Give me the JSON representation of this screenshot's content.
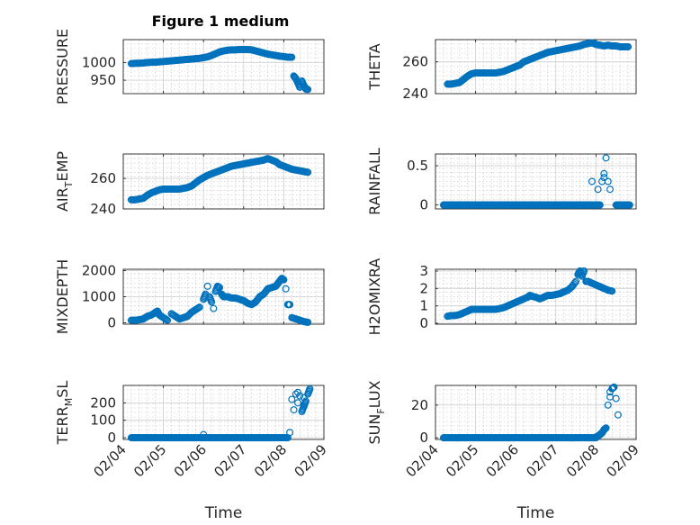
{
  "figure": {
    "title": "Figure 1 medium",
    "marker_color": "#0072BD"
  },
  "x_tick_labels": [
    "02/04",
    "02/05",
    "02/06",
    "02/07",
    "02/08",
    "02/09"
  ],
  "chart_data": [
    {
      "type": "scatter",
      "name": "pressure",
      "title": "Figure 1 medium",
      "ylabel": "PRESSURE",
      "xlabel": "",
      "x_range": [
        0,
        5
      ],
      "ylim": [
        912,
        1065
      ],
      "yticks": [
        950,
        1000
      ],
      "ytick_labels": [
        "950",
        "1000"
      ],
      "x_tick_labels_shown": false,
      "points": [
        [
          0.2,
          997
        ],
        [
          0.3,
          998
        ],
        [
          0.4,
          998
        ],
        [
          0.5,
          999
        ],
        [
          0.6,
          1000
        ],
        [
          0.7,
          1001
        ],
        [
          0.8,
          1001
        ],
        [
          0.9,
          1002
        ],
        [
          1.0,
          1003
        ],
        [
          1.1,
          1004
        ],
        [
          1.2,
          1005
        ],
        [
          1.3,
          1006
        ],
        [
          1.4,
          1007
        ],
        [
          1.5,
          1008
        ],
        [
          1.6,
          1009
        ],
        [
          1.7,
          1010
        ],
        [
          1.8,
          1011
        ],
        [
          1.9,
          1012
        ],
        [
          2.0,
          1014
        ],
        [
          2.1,
          1016
        ],
        [
          2.2,
          1020
        ],
        [
          2.3,
          1025
        ],
        [
          2.4,
          1030
        ],
        [
          2.5,
          1033
        ],
        [
          2.6,
          1035
        ],
        [
          2.7,
          1036
        ],
        [
          2.8,
          1036
        ],
        [
          2.9,
          1037
        ],
        [
          3.0,
          1037
        ],
        [
          3.1,
          1037
        ],
        [
          3.2,
          1036
        ],
        [
          3.3,
          1033
        ],
        [
          3.4,
          1030
        ],
        [
          3.5,
          1027
        ],
        [
          3.6,
          1024
        ],
        [
          3.7,
          1022
        ],
        [
          3.8,
          1020
        ],
        [
          3.9,
          1018
        ],
        [
          4.0,
          1017
        ],
        [
          4.1,
          1015
        ],
        [
          4.2,
          1015
        ],
        [
          4.25,
          962
        ],
        [
          4.3,
          955
        ],
        [
          4.35,
          943
        ],
        [
          4.4,
          930
        ],
        [
          4.45,
          948
        ],
        [
          4.5,
          935
        ],
        [
          4.55,
          925
        ],
        [
          4.6,
          924
        ]
      ]
    },
    {
      "type": "scatter",
      "name": "theta",
      "ylabel": "THETA",
      "xlabel": "",
      "x_range": [
        0,
        5
      ],
      "ylim": [
        240,
        274
      ],
      "yticks": [
        240,
        260
      ],
      "ytick_labels": [
        "240",
        "260"
      ],
      "x_tick_labels_shown": false,
      "points": [
        [
          0.3,
          246
        ],
        [
          0.4,
          246
        ],
        [
          0.5,
          246.5
        ],
        [
          0.6,
          247
        ],
        [
          0.7,
          249
        ],
        [
          0.8,
          251
        ],
        [
          0.9,
          252.5
        ],
        [
          1.0,
          253
        ],
        [
          1.1,
          253
        ],
        [
          1.2,
          253
        ],
        [
          1.3,
          253
        ],
        [
          1.4,
          253
        ],
        [
          1.5,
          253
        ],
        [
          1.6,
          253.5
        ],
        [
          1.7,
          254
        ],
        [
          1.8,
          255
        ],
        [
          1.9,
          256
        ],
        [
          2.0,
          257
        ],
        [
          2.1,
          258
        ],
        [
          2.2,
          260
        ],
        [
          2.3,
          261
        ],
        [
          2.4,
          262
        ],
        [
          2.5,
          263
        ],
        [
          2.6,
          264
        ],
        [
          2.7,
          265
        ],
        [
          2.8,
          266
        ],
        [
          2.9,
          266.5
        ],
        [
          3.0,
          267
        ],
        [
          3.1,
          267.5
        ],
        [
          3.2,
          268
        ],
        [
          3.3,
          268.5
        ],
        [
          3.4,
          269
        ],
        [
          3.5,
          269.5
        ],
        [
          3.6,
          270
        ],
        [
          3.7,
          271
        ],
        [
          3.8,
          271.5
        ],
        [
          3.9,
          272
        ],
        [
          4.0,
          271
        ],
        [
          4.1,
          270.5
        ],
        [
          4.2,
          270
        ],
        [
          4.3,
          270.5
        ],
        [
          4.4,
          270
        ],
        [
          4.5,
          270
        ],
        [
          4.6,
          269.5
        ],
        [
          4.7,
          269.5
        ],
        [
          4.8,
          269.5
        ]
      ]
    },
    {
      "type": "scatter",
      "name": "air-temp",
      "ylabel": "AIR_TEMP",
      "ylabel_main": "AIR",
      "ylabel_sub": "T",
      "ylabel_rest": "EMP",
      "xlabel": "",
      "x_range": [
        0,
        5
      ],
      "ylim": [
        240,
        276
      ],
      "yticks": [
        240,
        260
      ],
      "ytick_labels": [
        "240",
        "260"
      ],
      "x_tick_labels_shown": false,
      "points": [
        [
          0.2,
          246
        ],
        [
          0.3,
          246
        ],
        [
          0.4,
          246.5
        ],
        [
          0.5,
          247
        ],
        [
          0.6,
          249
        ],
        [
          0.7,
          250.5
        ],
        [
          0.8,
          251.5
        ],
        [
          0.9,
          252.5
        ],
        [
          1.0,
          253
        ],
        [
          1.1,
          253
        ],
        [
          1.2,
          253
        ],
        [
          1.3,
          253
        ],
        [
          1.4,
          253
        ],
        [
          1.5,
          253.5
        ],
        [
          1.6,
          254
        ],
        [
          1.7,
          255
        ],
        [
          1.8,
          257
        ],
        [
          1.9,
          259
        ],
        [
          2.0,
          260.5
        ],
        [
          2.1,
          262
        ],
        [
          2.2,
          263
        ],
        [
          2.3,
          264
        ],
        [
          2.4,
          265
        ],
        [
          2.5,
          266
        ],
        [
          2.6,
          267
        ],
        [
          2.7,
          268
        ],
        [
          2.8,
          268.5
        ],
        [
          2.9,
          269
        ],
        [
          3.0,
          269.5
        ],
        [
          3.1,
          270
        ],
        [
          3.2,
          270.5
        ],
        [
          3.3,
          271
        ],
        [
          3.4,
          271.5
        ],
        [
          3.5,
          272
        ],
        [
          3.6,
          273
        ],
        [
          3.7,
          272
        ],
        [
          3.8,
          271
        ],
        [
          3.9,
          269
        ],
        [
          4.0,
          268
        ],
        [
          4.1,
          267
        ],
        [
          4.2,
          266
        ],
        [
          4.3,
          265.5
        ],
        [
          4.4,
          265
        ],
        [
          4.5,
          264.5
        ],
        [
          4.6,
          264
        ]
      ]
    },
    {
      "type": "scatter",
      "name": "rainfall",
      "ylabel": "RAINFALL",
      "xlabel": "",
      "x_range": [
        0,
        5
      ],
      "ylim": [
        -0.05,
        0.65
      ],
      "yticks": [
        0,
        0.5
      ],
      "ytick_labels": [
        "0",
        "0.5"
      ],
      "x_tick_labels_shown": false,
      "baseline_runs": [
        [
          0.2,
          4.1,
          0
        ],
        [
          4.5,
          4.85,
          0
        ]
      ],
      "points": [
        [
          3.9,
          0.3
        ],
        [
          4.05,
          0.2
        ],
        [
          4.15,
          0.3
        ],
        [
          4.2,
          0.4
        ],
        [
          4.25,
          0.6
        ],
        [
          4.3,
          0.3
        ],
        [
          4.35,
          0.2
        ],
        [
          4.2,
          0.35
        ]
      ]
    },
    {
      "type": "scatter",
      "name": "mixdepth",
      "ylabel": "MIXDEPTH",
      "xlabel": "",
      "x_range": [
        0,
        5
      ],
      "ylim": [
        -50,
        2050
      ],
      "yticks": [
        0,
        1000,
        2000
      ],
      "ytick_labels": [
        "0",
        "1000",
        "2000"
      ],
      "x_tick_labels_shown": false,
      "points": [
        [
          0.2,
          100
        ],
        [
          0.3,
          100
        ],
        [
          0.4,
          120
        ],
        [
          0.5,
          150
        ],
        [
          0.6,
          250
        ],
        [
          0.7,
          300
        ],
        [
          0.8,
          400
        ],
        [
          0.85,
          450
        ],
        [
          0.9,
          300
        ],
        [
          1.0,
          200
        ],
        [
          1.1,
          100
        ],
        [
          1.2,
          350
        ],
        [
          1.3,
          250
        ],
        [
          1.4,
          150
        ],
        [
          1.5,
          200
        ],
        [
          1.6,
          250
        ],
        [
          1.7,
          400
        ],
        [
          1.8,
          500
        ],
        [
          1.9,
          600
        ],
        [
          2.0,
          900
        ],
        [
          2.05,
          1100
        ],
        [
          2.1,
          1400
        ],
        [
          2.15,
          1000
        ],
        [
          2.2,
          800
        ],
        [
          2.25,
          550
        ],
        [
          2.3,
          1200
        ],
        [
          2.35,
          1400
        ],
        [
          2.4,
          1350
        ],
        [
          2.45,
          1100
        ],
        [
          2.5,
          1000
        ],
        [
          2.6,
          1000
        ],
        [
          2.7,
          950
        ],
        [
          2.8,
          950
        ],
        [
          2.9,
          900
        ],
        [
          3.0,
          850
        ],
        [
          3.1,
          750
        ],
        [
          3.2,
          700
        ],
        [
          3.3,
          800
        ],
        [
          3.4,
          1000
        ],
        [
          3.5,
          1100
        ],
        [
          3.6,
          1300
        ],
        [
          3.7,
          1350
        ],
        [
          3.8,
          1400
        ],
        [
          3.85,
          1500
        ],
        [
          3.9,
          1600
        ],
        [
          3.95,
          1700
        ],
        [
          4.0,
          1650
        ],
        [
          4.05,
          1300
        ],
        [
          4.1,
          700
        ],
        [
          4.15,
          700
        ],
        [
          4.2,
          200
        ],
        [
          4.3,
          150
        ],
        [
          4.4,
          100
        ],
        [
          4.5,
          50
        ],
        [
          4.6,
          20
        ]
      ]
    },
    {
      "type": "scatter",
      "name": "h2omixra",
      "ylabel": "H2OMIXRA",
      "xlabel": "",
      "x_range": [
        0,
        5
      ],
      "ylim": [
        -0.05,
        3.1
      ],
      "yticks": [
        0,
        1,
        2,
        3
      ],
      "ytick_labels": [
        "0",
        "1",
        "2",
        "3"
      ],
      "x_tick_labels_shown": false,
      "points": [
        [
          0.3,
          0.4
        ],
        [
          0.4,
          0.45
        ],
        [
          0.5,
          0.45
        ],
        [
          0.6,
          0.5
        ],
        [
          0.7,
          0.6
        ],
        [
          0.8,
          0.7
        ],
        [
          0.9,
          0.8
        ],
        [
          1.0,
          0.8
        ],
        [
          1.1,
          0.8
        ],
        [
          1.2,
          0.8
        ],
        [
          1.3,
          0.8
        ],
        [
          1.4,
          0.8
        ],
        [
          1.5,
          0.8
        ],
        [
          1.6,
          0.85
        ],
        [
          1.7,
          0.9
        ],
        [
          1.8,
          1.0
        ],
        [
          1.9,
          1.1
        ],
        [
          2.0,
          1.2
        ],
        [
          2.1,
          1.3
        ],
        [
          2.2,
          1.4
        ],
        [
          2.3,
          1.5
        ],
        [
          2.35,
          1.6
        ],
        [
          2.4,
          1.55
        ],
        [
          2.5,
          1.5
        ],
        [
          2.6,
          1.4
        ],
        [
          2.7,
          1.5
        ],
        [
          2.8,
          1.6
        ],
        [
          2.9,
          1.6
        ],
        [
          3.0,
          1.65
        ],
        [
          3.1,
          1.7
        ],
        [
          3.2,
          1.8
        ],
        [
          3.3,
          1.9
        ],
        [
          3.4,
          2.1
        ],
        [
          3.5,
          2.4
        ],
        [
          3.55,
          2.8
        ],
        [
          3.6,
          3.0
        ],
        [
          3.65,
          2.7
        ],
        [
          3.7,
          3.0
        ],
        [
          3.75,
          2.4
        ],
        [
          3.8,
          2.4
        ],
        [
          3.9,
          2.3
        ],
        [
          4.0,
          2.2
        ],
        [
          4.1,
          2.1
        ],
        [
          4.2,
          2.0
        ],
        [
          4.3,
          1.9
        ],
        [
          4.4,
          1.85
        ]
      ]
    },
    {
      "type": "scatter",
      "name": "terr-msl",
      "ylabel": "TERR_MSL",
      "ylabel_main": "TERR",
      "ylabel_sub": "M",
      "ylabel_rest": "SL",
      "xlabel": "Time",
      "x_range": [
        0,
        5
      ],
      "ylim": [
        -10,
        300
      ],
      "yticks": [
        0,
        100,
        200
      ],
      "ytick_labels": [
        "0",
        "100",
        "200"
      ],
      "x_tick_labels_shown": true,
      "baseline_runs": [
        [
          0.2,
          4.1,
          0
        ]
      ],
      "points": [
        [
          2.0,
          18
        ],
        [
          4.15,
          30
        ],
        [
          4.2,
          220
        ],
        [
          4.25,
          160
        ],
        [
          4.3,
          250
        ],
        [
          4.35,
          200
        ],
        [
          4.4,
          240
        ],
        [
          4.45,
          150
        ],
        [
          4.5,
          180
        ],
        [
          4.55,
          210
        ],
        [
          4.6,
          250
        ],
        [
          4.65,
          280
        ],
        [
          4.35,
          260
        ],
        [
          4.5,
          230
        ]
      ]
    },
    {
      "type": "scatter",
      "name": "sun-flux",
      "ylabel": "SUN_FLUX",
      "ylabel_main": "SUN",
      "ylabel_sub": "F",
      "ylabel_rest": "LUX",
      "xlabel": "Time",
      "x_range": [
        0,
        5
      ],
      "ylim": [
        -1,
        32
      ],
      "yticks": [
        0,
        20
      ],
      "ytick_labels": [
        "0",
        "20"
      ],
      "x_tick_labels_shown": true,
      "baseline_runs": [
        [
          0.2,
          4.0,
          0
        ]
      ],
      "points": [
        [
          4.0,
          0.5
        ],
        [
          4.05,
          1
        ],
        [
          4.1,
          2
        ],
        [
          4.15,
          3
        ],
        [
          4.2,
          5
        ],
        [
          4.25,
          6
        ],
        [
          4.3,
          20
        ],
        [
          4.35,
          25
        ],
        [
          4.4,
          30
        ],
        [
          4.45,
          31
        ],
        [
          4.5,
          24
        ],
        [
          4.55,
          14
        ],
        [
          4.35,
          28
        ]
      ]
    }
  ]
}
